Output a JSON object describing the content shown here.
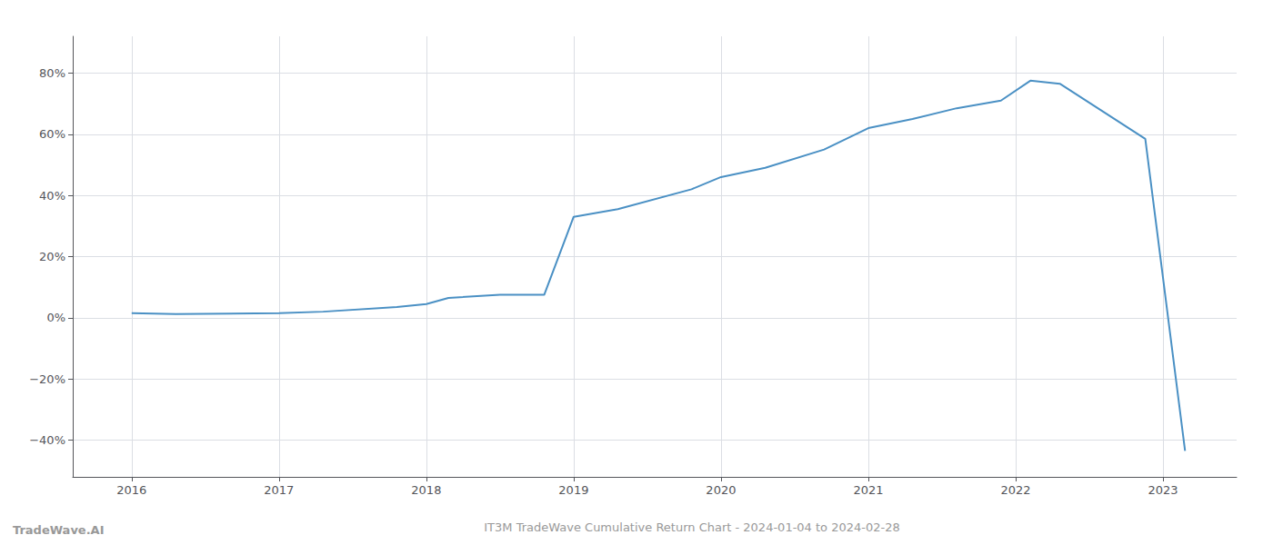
{
  "chart_data": {
    "type": "line",
    "title": "IT3M TradeWave Cumulative Return Chart - 2024-01-04 to 2024-02-28",
    "annotations": [
      "TradeWave.AI"
    ],
    "x": [
      2016.0,
      2016.3,
      2017.0,
      2017.3,
      2017.8,
      2018.0,
      2018.15,
      2018.5,
      2018.8,
      2019.0,
      2019.3,
      2019.8,
      2020.0,
      2020.3,
      2020.7,
      2021.0,
      2021.3,
      2021.6,
      2021.9,
      2022.1,
      2022.3,
      2022.88,
      2023.15
    ],
    "values": [
      1.5,
      1.2,
      1.5,
      2.0,
      3.5,
      4.5,
      6.5,
      7.5,
      7.5,
      33.0,
      35.5,
      42.0,
      46.0,
      49.0,
      55.0,
      62.0,
      65.0,
      68.5,
      71.0,
      77.5,
      76.5,
      58.5,
      -43.5
    ],
    "color": "#4a90c4",
    "xlim": [
      2015.6,
      2023.5
    ],
    "xticks": [
      2016,
      2017,
      2018,
      2019,
      2020,
      2021,
      2022,
      2023
    ],
    "ylim": [
      -52,
      92
    ],
    "yticks": [
      {
        "value": -40,
        "label": "−40%"
      },
      {
        "value": -20,
        "label": "−20%"
      },
      {
        "value": 0,
        "label": "0%"
      },
      {
        "value": 20,
        "label": "20%"
      },
      {
        "value": 40,
        "label": "40%"
      },
      {
        "value": 60,
        "label": "60%"
      },
      {
        "value": 80,
        "label": "80%"
      }
    ],
    "grid": true
  }
}
